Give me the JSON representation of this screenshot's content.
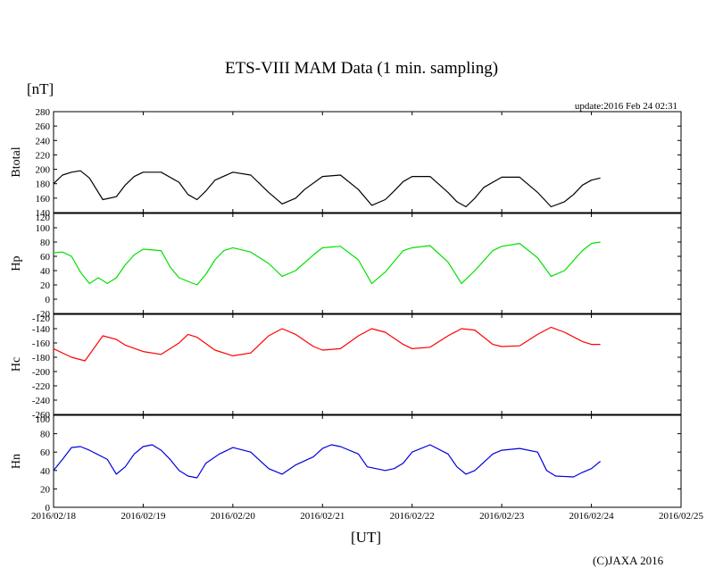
{
  "header": {
    "title": "ETS-VIII MAM Data (1 min. sampling)",
    "unit": "[nT]",
    "update": "update:2016 Feb 24 02:31"
  },
  "footer": {
    "x_unit": "[UT]",
    "copyright": "(C)JAXA 2016"
  },
  "chart_data": {
    "type": "line",
    "title": "ETS-VIII MAM Data (1 min. sampling)",
    "xlabel": "[UT]",
    "ylabel": "[nT]",
    "x_ticks": [
      "2016/02/18",
      "2016/02/19",
      "2016/02/20",
      "2016/02/21",
      "2016/02/22",
      "2016/02/23",
      "2016/02/24",
      "2016/02/25"
    ],
    "x_range_days": [
      0,
      7
    ],
    "grid": false,
    "panels": [
      {
        "name": "Btotal",
        "color": "#000000",
        "ylim": [
          140,
          280
        ],
        "y_ticks": [
          140,
          160,
          180,
          200,
          220,
          240,
          260,
          280
        ],
        "x": [
          0,
          0.1,
          0.2,
          0.3,
          0.4,
          0.55,
          0.7,
          0.8,
          0.9,
          1.0,
          1.2,
          1.4,
          1.5,
          1.6,
          1.7,
          1.8,
          2.0,
          2.2,
          2.4,
          2.55,
          2.7,
          2.8,
          3.0,
          3.2,
          3.4,
          3.55,
          3.7,
          3.8,
          3.9,
          4.0,
          4.2,
          4.4,
          4.5,
          4.6,
          4.7,
          4.8,
          5.0,
          5.2,
          5.4,
          5.55,
          5.7,
          5.8,
          5.9,
          6.0,
          6.1
        ],
        "values": [
          180,
          192,
          196,
          198,
          188,
          158,
          162,
          178,
          190,
          196,
          196,
          182,
          165,
          158,
          170,
          185,
          196,
          192,
          168,
          152,
          160,
          172,
          190,
          192,
          172,
          150,
          158,
          170,
          183,
          190,
          190,
          168,
          155,
          148,
          160,
          175,
          189,
          189,
          168,
          148,
          155,
          165,
          178,
          185,
          188
        ]
      },
      {
        "name": "Hp",
        "color": "#00e000",
        "ylim": [
          -20,
          120
        ],
        "y_ticks": [
          -20,
          0,
          20,
          40,
          60,
          80,
          100,
          120
        ],
        "x": [
          0,
          0.1,
          0.2,
          0.3,
          0.4,
          0.5,
          0.6,
          0.7,
          0.8,
          0.9,
          1.0,
          1.2,
          1.3,
          1.4,
          1.5,
          1.6,
          1.7,
          1.8,
          1.9,
          2.0,
          2.2,
          2.4,
          2.55,
          2.7,
          2.9,
          3.0,
          3.2,
          3.4,
          3.55,
          3.7,
          3.9,
          4.0,
          4.2,
          4.4,
          4.55,
          4.7,
          4.9,
          5.0,
          5.2,
          5.4,
          5.55,
          5.7,
          5.9,
          6.0,
          6.1
        ],
        "values": [
          65,
          66,
          60,
          38,
          22,
          30,
          22,
          30,
          48,
          62,
          70,
          68,
          45,
          30,
          25,
          20,
          35,
          55,
          68,
          72,
          66,
          50,
          32,
          40,
          62,
          72,
          74,
          55,
          22,
          38,
          68,
          72,
          75,
          52,
          22,
          40,
          68,
          74,
          78,
          58,
          32,
          40,
          68,
          78,
          80
        ]
      },
      {
        "name": "Hc",
        "color": "#ff0000",
        "ylim": [
          -260,
          -120
        ],
        "y_ticks": [
          -260,
          -240,
          -220,
          -200,
          -180,
          -160,
          -140,
          -120
        ],
        "x": [
          0,
          0.2,
          0.35,
          0.55,
          0.7,
          0.8,
          1.0,
          1.2,
          1.4,
          1.5,
          1.6,
          1.8,
          2.0,
          2.2,
          2.4,
          2.55,
          2.7,
          2.9,
          3.0,
          3.2,
          3.4,
          3.55,
          3.7,
          3.9,
          4.0,
          4.2,
          4.4,
          4.55,
          4.7,
          4.9,
          5.0,
          5.2,
          5.4,
          5.55,
          5.7,
          5.9,
          6.0,
          6.1
        ],
        "values": [
          -168,
          -180,
          -185,
          -150,
          -155,
          -163,
          -172,
          -176,
          -160,
          -148,
          -152,
          -170,
          -178,
          -174,
          -150,
          -140,
          -148,
          -165,
          -170,
          -168,
          -150,
          -140,
          -145,
          -162,
          -168,
          -166,
          -150,
          -140,
          -142,
          -162,
          -165,
          -164,
          -148,
          -138,
          -145,
          -158,
          -162,
          -162
        ]
      },
      {
        "name": "Hn",
        "color": "#0000dd",
        "ylim": [
          0,
          100
        ],
        "y_ticks": [
          0,
          20,
          40,
          60,
          80,
          100
        ],
        "x": [
          0,
          0.1,
          0.2,
          0.3,
          0.4,
          0.6,
          0.7,
          0.8,
          0.9,
          1.0,
          1.1,
          1.2,
          1.3,
          1.4,
          1.5,
          1.6,
          1.7,
          1.85,
          2.0,
          2.2,
          2.4,
          2.55,
          2.7,
          2.9,
          3.0,
          3.1,
          3.2,
          3.4,
          3.5,
          3.7,
          3.8,
          3.9,
          4.0,
          4.2,
          4.4,
          4.5,
          4.6,
          4.7,
          4.9,
          5.0,
          5.2,
          5.4,
          5.5,
          5.6,
          5.8,
          5.9,
          6.0,
          6.1
        ],
        "values": [
          40,
          52,
          65,
          66,
          62,
          52,
          36,
          44,
          58,
          66,
          68,
          62,
          52,
          40,
          34,
          32,
          48,
          58,
          65,
          60,
          42,
          36,
          46,
          55,
          64,
          68,
          66,
          58,
          44,
          40,
          42,
          48,
          60,
          68,
          58,
          44,
          36,
          40,
          58,
          62,
          64,
          60,
          40,
          34,
          33,
          38,
          42,
          50
        ]
      }
    ]
  }
}
